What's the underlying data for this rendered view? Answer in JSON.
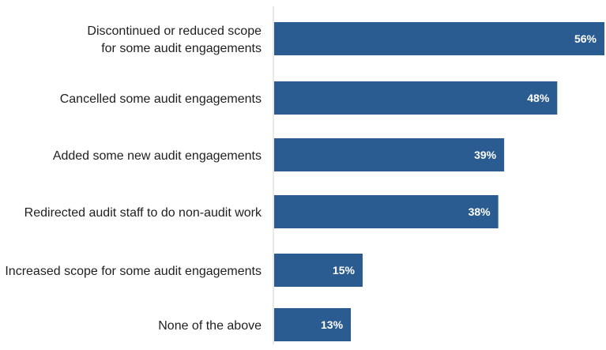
{
  "chart_data": {
    "type": "bar",
    "orientation": "horizontal",
    "title": "",
    "xlabel": "",
    "ylabel": "",
    "categories": [
      [
        "Discontinued or reduced scope",
        "for some audit engagements"
      ],
      [
        "Cancelled some audit engagements"
      ],
      [
        "Added some new audit engagements"
      ],
      [
        "Redirected audit staff to do non-audit work"
      ],
      [
        "Increased scope for some audit engagements"
      ],
      [
        "None of the above"
      ]
    ],
    "values": [
      56,
      48,
      39,
      38,
      15,
      13
    ],
    "value_labels": [
      "56%",
      "48%",
      "39%",
      "38%",
      "15%",
      "13%"
    ],
    "xlim": [
      0,
      56
    ],
    "grid": false,
    "legend": "none",
    "colors": {
      "bar": "#2a5c91",
      "bar_label": "#ffffff",
      "category_text": "#1f1f1f",
      "axis": "#d0d0d0"
    }
  }
}
